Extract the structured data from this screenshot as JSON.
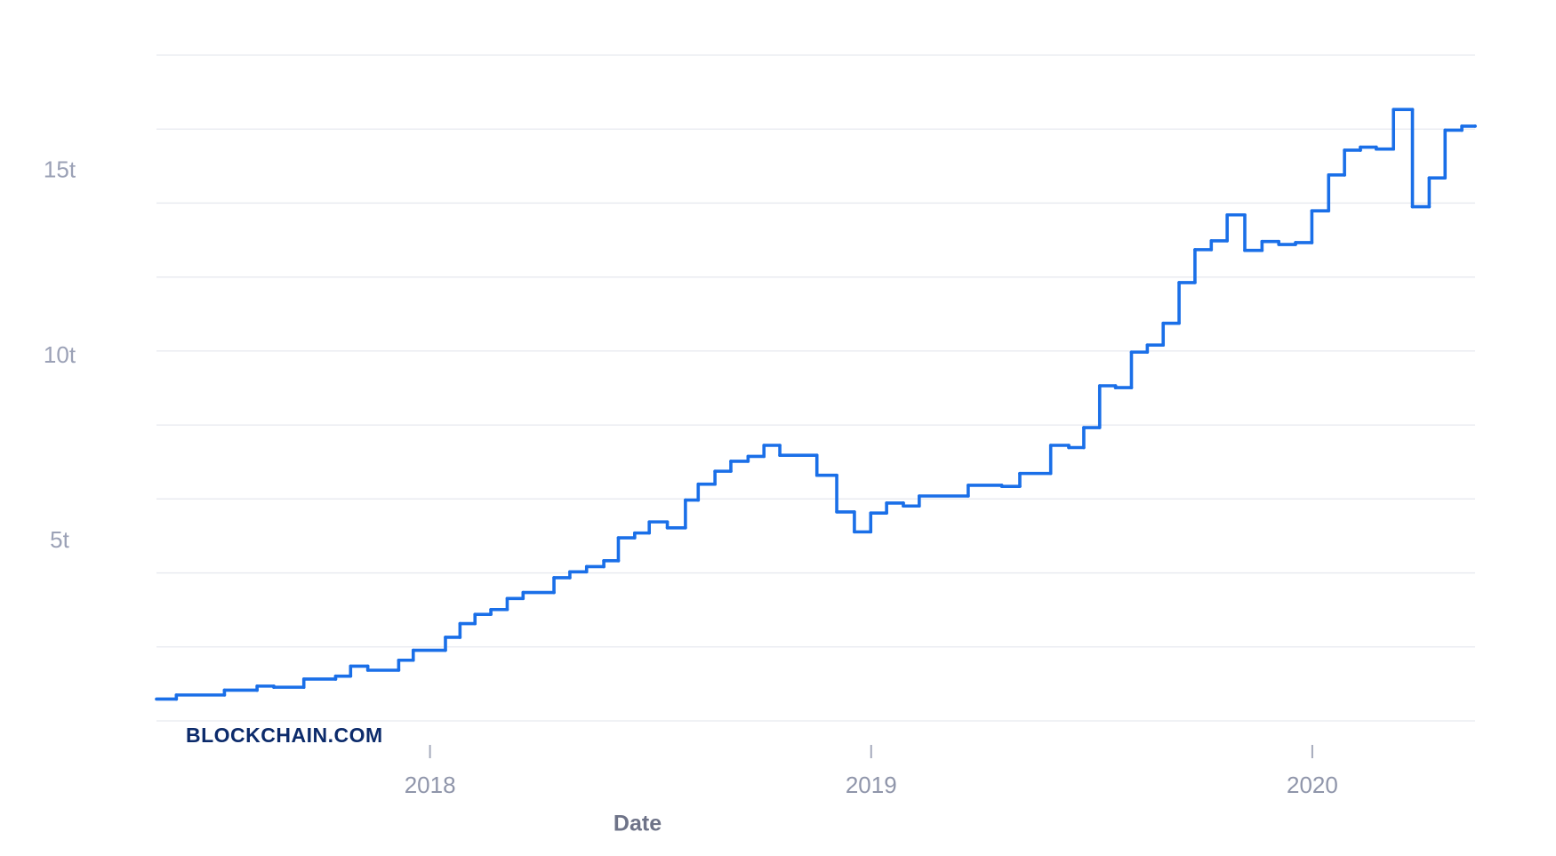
{
  "chart_data": {
    "type": "step-line",
    "x_label": "Date",
    "watermark": "BLOCKCHAIN.COM",
    "xlim": [
      2017.38,
      2020.369
    ],
    "xticks": [
      2018,
      2019,
      2020
    ],
    "ylim": [
      0,
      18
    ],
    "yticks": [
      {
        "value": 5,
        "label": "5t"
      },
      {
        "value": 10,
        "label": "10t"
      },
      {
        "value": 15,
        "label": "15t"
      }
    ],
    "ygrid": [
      0,
      2,
      4,
      6,
      8,
      10,
      12,
      14,
      16,
      18
    ],
    "grid": true,
    "series": [
      {
        "color": "#1a6fe8",
        "x": [
          2017.38,
          2017.425,
          2017.534,
          2017.608,
          2017.646,
          2017.714,
          2017.786,
          2017.82,
          2017.859,
          2017.929,
          2017.962,
          2018.035,
          2018.068,
          2018.102,
          2018.138,
          2018.175,
          2018.211,
          2018.281,
          2018.317,
          2018.355,
          2018.394,
          2018.427,
          2018.464,
          2018.497,
          2018.538,
          2018.579,
          2018.608,
          2018.646,
          2018.682,
          2018.721,
          2018.757,
          2018.793,
          2018.877,
          2018.922,
          2018.962,
          2018.999,
          2019.035,
          2019.073,
          2019.109,
          2019.22,
          2019.296,
          2019.337,
          2019.407,
          2019.448,
          2019.482,
          2019.518,
          2019.554,
          2019.59,
          2019.626,
          2019.662,
          2019.698,
          2019.734,
          2019.771,
          2019.807,
          2019.847,
          2019.886,
          2019.924,
          2019.962,
          2019.999,
          2020.037,
          2020.073,
          2020.109,
          2020.145,
          2020.184,
          2020.227,
          2020.265,
          2020.301,
          2020.339,
          2020.369
        ],
        "values": [
          0.59,
          0.7,
          0.83,
          0.94,
          0.91,
          1.13,
          1.21,
          1.48,
          1.37,
          1.64,
          1.91,
          2.26,
          2.63,
          2.88,
          3.01,
          3.31,
          3.47,
          3.87,
          4.03,
          4.17,
          4.33,
          4.95,
          5.08,
          5.38,
          5.22,
          5.97,
          6.4,
          6.75,
          7.02,
          7.15,
          7.45,
          7.18,
          6.64,
          5.65,
          5.11,
          5.62,
          5.89,
          5.81,
          6.08,
          6.37,
          6.34,
          6.69,
          7.45,
          7.39,
          7.93,
          9.06,
          9.01,
          9.97,
          10.16,
          10.75,
          11.85,
          12.74,
          12.98,
          13.68,
          12.72,
          12.96,
          12.88,
          12.93,
          13.79,
          14.76,
          15.43,
          15.51,
          15.46,
          16.53,
          13.9,
          14.68,
          15.97,
          16.08,
          16.08
        ]
      }
    ]
  }
}
